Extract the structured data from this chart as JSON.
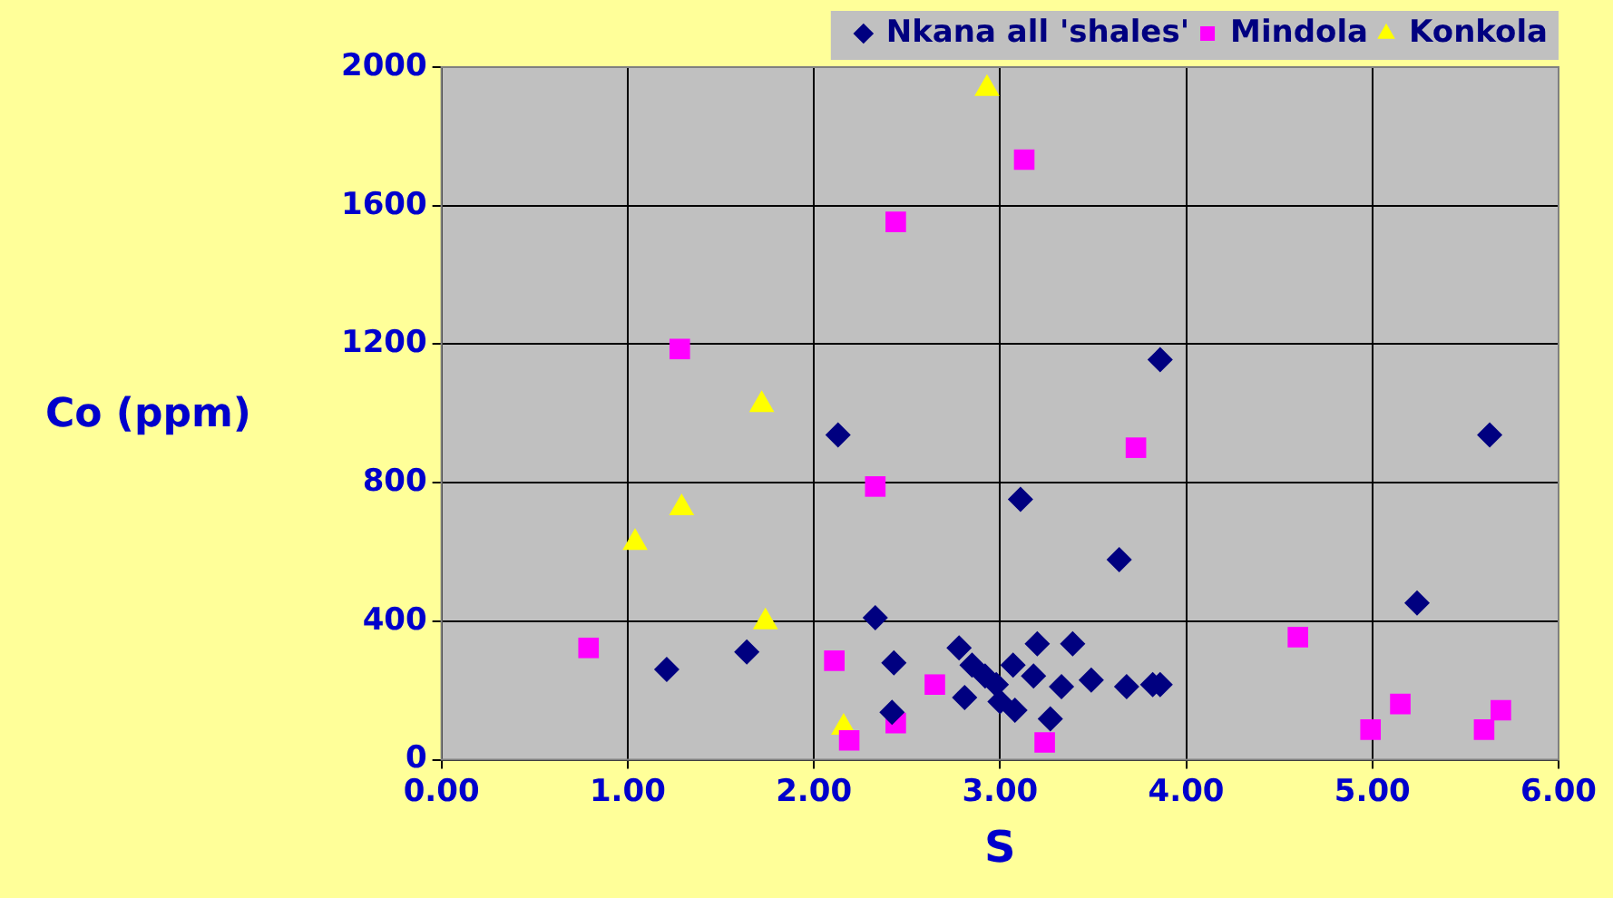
{
  "chart_data": {
    "type": "scatter",
    "xlabel": "S",
    "ylabel": "Co (ppm)",
    "legend": "top",
    "grid": true,
    "xlim": [
      0,
      6
    ],
    "ylim": [
      0,
      2000
    ],
    "xticks": [
      {
        "value": 0,
        "label": "0.00"
      },
      {
        "value": 1,
        "label": "1.00"
      },
      {
        "value": 2,
        "label": "2.00"
      },
      {
        "value": 3,
        "label": "3.00"
      },
      {
        "value": 4,
        "label": "4.00"
      },
      {
        "value": 5,
        "label": "5.00"
      },
      {
        "value": 6,
        "label": "6.00"
      }
    ],
    "yticks": [
      0,
      400,
      800,
      1200,
      1600,
      2000
    ],
    "series": [
      {
        "name": "Nkana all 'shales'",
        "color": "#000080",
        "marker": "diamond",
        "x": [
          1.21,
          1.64,
          2.13,
          2.33,
          2.43,
          2.42,
          3.11,
          3.86,
          3.64,
          5.24,
          5.63,
          2.78,
          2.85,
          2.81,
          2.98,
          3.0,
          3.08,
          3.07,
          3.18,
          3.2,
          3.33,
          3.39,
          3.49,
          3.68,
          3.82,
          3.86,
          3.27,
          2.92
        ],
        "values": [
          261,
          311,
          938,
          410,
          280,
          137,
          752,
          1155,
          578,
          453,
          938,
          323,
          273,
          180,
          217,
          168,
          143,
          273,
          242,
          335,
          211,
          335,
          230,
          211,
          217,
          217,
          118,
          242
        ]
      },
      {
        "name": "Mindola",
        "color": "#ff00ff",
        "marker": "square",
        "x": [
          0.79,
          1.28,
          2.11,
          2.19,
          2.44,
          2.33,
          2.44,
          2.65,
          3.13,
          3.24,
          3.73,
          4.6,
          4.99,
          5.15,
          5.6,
          5.69
        ],
        "values": [
          323,
          1186,
          286,
          56,
          1553,
          789,
          106,
          217,
          1733,
          50,
          901,
          354,
          87,
          161,
          87,
          143
        ]
      },
      {
        "name": "Konkola",
        "color": "#ffff00",
        "marker": "triangle",
        "x": [
          2.93,
          1.04,
          1.29,
          1.72,
          1.74,
          2.16
        ],
        "values": [
          1938,
          627,
          727,
          1025,
          398,
          93
        ]
      }
    ]
  }
}
